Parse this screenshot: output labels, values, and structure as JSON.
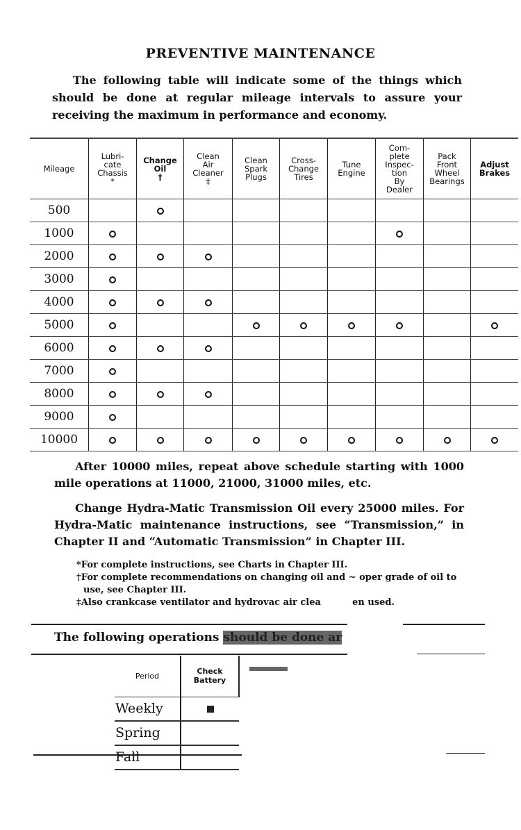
{
  "title": "PREVENTIVE MAINTENANCE",
  "intro": "The following table will indicate some of the things which should be done at regular mileage intervals to assure your receiving the maximum in performance and economy.",
  "schedule": {
    "headers": [
      "Mileage",
      "Lubri-\ncate\nChassis\n*",
      "Change\nOil\n†",
      "Clean\nAir\nCleaner\n‡",
      "Clean\nSpark\nPlugs",
      "Cross-\nChange\nTires",
      "Tune\nEngine",
      "Com-\nplete\nInspec-\ntion\nBy\nDealer",
      "Pack\nFront\nWheel\nBearings",
      "Adjust\nBrakes"
    ],
    "rows": [
      {
        "mileage": "500",
        "marks": [
          0,
          1,
          0,
          0,
          0,
          0,
          0,
          0,
          0
        ]
      },
      {
        "mileage": "1000",
        "marks": [
          1,
          0,
          0,
          0,
          0,
          0,
          1,
          0,
          0
        ]
      },
      {
        "mileage": "2000",
        "marks": [
          1,
          1,
          1,
          0,
          0,
          0,
          0,
          0,
          0
        ]
      },
      {
        "mileage": "3000",
        "marks": [
          1,
          0,
          0,
          0,
          0,
          0,
          0,
          0,
          0
        ]
      },
      {
        "mileage": "4000",
        "marks": [
          1,
          1,
          1,
          0,
          0,
          0,
          0,
          0,
          0
        ]
      },
      {
        "mileage": "5000",
        "marks": [
          1,
          0,
          0,
          1,
          1,
          1,
          1,
          0,
          1
        ]
      },
      {
        "mileage": "6000",
        "marks": [
          1,
          1,
          1,
          0,
          0,
          0,
          0,
          0,
          0
        ]
      },
      {
        "mileage": "7000",
        "marks": [
          1,
          0,
          0,
          0,
          0,
          0,
          0,
          0,
          0
        ]
      },
      {
        "mileage": "8000",
        "marks": [
          1,
          1,
          1,
          0,
          0,
          0,
          0,
          0,
          0
        ]
      },
      {
        "mileage": "9000",
        "marks": [
          1,
          0,
          0,
          0,
          0,
          0,
          0,
          0,
          0
        ]
      },
      {
        "mileage": "10000",
        "marks": [
          1,
          1,
          1,
          1,
          1,
          1,
          1,
          1,
          1
        ]
      }
    ]
  },
  "para1": "After 10000 miles, repeat above schedule starting with 1000 mile operations at 11000, 21000, 31000 miles, etc.",
  "para2": "Change Hydra-Matic Transmission Oil every 25000 miles. For Hydra-Matic maintenance instructions, see “Transmission,” in Chapter II and “Automatic Transmission” in Chapter III.",
  "notes": [
    "*For complete instructions, see Charts in Chapter III.",
    "†For complete recommendations on changing oil and ~ oper grade of oil to use, see Chapter III.",
    "‡Also crankcase ventilator and hydrovac air clea          en used."
  ],
  "subheading": "The following operations",
  "subheading_smudged": "should be done ar",
  "periodic": {
    "headers": [
      "Period",
      "Check\nBattery"
    ],
    "rows": [
      {
        "period": "Weekly",
        "battery": true
      },
      {
        "period": "Spring",
        "battery": false
      },
      {
        "period": "Fall",
        "battery": false
      }
    ]
  }
}
